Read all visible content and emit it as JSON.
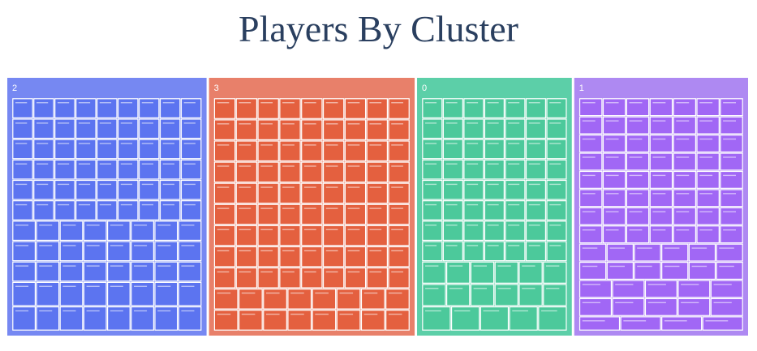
{
  "chart_data": {
    "type": "treemap",
    "title": "Players By Cluster",
    "root_color": "#ffffff",
    "series": [
      {
        "name": "2",
        "color": "#7688f2",
        "leaf_color": "#5c74f0",
        "rows": [
          {
            "count": 9,
            "weight": 1.0
          },
          {
            "count": 9,
            "weight": 1.0
          },
          {
            "count": 9,
            "weight": 1.0
          },
          {
            "count": 9,
            "weight": 1.0
          },
          {
            "count": 9,
            "weight": 1.0
          },
          {
            "count": 9,
            "weight": 1.0
          },
          {
            "count": 8,
            "weight": 1.0
          },
          {
            "count": 8,
            "weight": 1.0
          },
          {
            "count": 8,
            "weight": 1.0
          },
          {
            "count": 8,
            "weight": 1.2
          },
          {
            "count": 8,
            "weight": 1.2
          }
        ],
        "labeled_leaves": [
          "Duke Lord",
          "Moving Cheez",
          "Strong Defend",
          "Gat Harper",
          "Jen Stan",
          "Jasper Mogan",
          "Jacob Kent",
          "Doug Stewart",
          "Stephen Gray",
          "Edgar Lavell",
          "Cherry Sanderson"
        ]
      },
      {
        "name": "3",
        "color": "#e8806a",
        "leaf_color": "#e4603f",
        "rows": [
          {
            "count": 9,
            "weight": 1.0
          },
          {
            "count": 9,
            "weight": 1.0
          },
          {
            "count": 9,
            "weight": 1.0
          },
          {
            "count": 9,
            "weight": 1.0
          },
          {
            "count": 9,
            "weight": 1.0
          },
          {
            "count": 9,
            "weight": 1.0
          },
          {
            "count": 9,
            "weight": 1.0
          },
          {
            "count": 9,
            "weight": 1.0
          },
          {
            "count": 9,
            "weight": 1.0
          },
          {
            "count": 8,
            "weight": 1.0
          },
          {
            "count": 8,
            "weight": 1.0
          }
        ],
        "labeled_leaves": [
          "Gary Rose",
          "Jesus Mora",
          "Ryan Hart"
        ]
      },
      {
        "name": "0",
        "color": "#5ccfa8",
        "leaf_color": "#4cc99b",
        "rows": [
          {
            "count": 7,
            "weight": 1.0
          },
          {
            "count": 7,
            "weight": 1.0
          },
          {
            "count": 7,
            "weight": 1.0
          },
          {
            "count": 7,
            "weight": 1.0
          },
          {
            "count": 7,
            "weight": 1.0
          },
          {
            "count": 7,
            "weight": 1.0
          },
          {
            "count": 7,
            "weight": 1.0
          },
          {
            "count": 7,
            "weight": 1.0
          },
          {
            "count": 6,
            "weight": 1.1
          },
          {
            "count": 6,
            "weight": 1.1
          },
          {
            "count": 5,
            "weight": 1.2
          }
        ],
        "labeled_leaves": [
          "Jack Green",
          "Kyle Owen",
          "Josh Wells"
        ]
      },
      {
        "name": "1",
        "color": "#ae89f2",
        "leaf_color": "#a167f5",
        "rows": [
          {
            "count": 7,
            "weight": 1.0
          },
          {
            "count": 7,
            "weight": 1.0
          },
          {
            "count": 7,
            "weight": 1.0
          },
          {
            "count": 7,
            "weight": 1.0
          },
          {
            "count": 7,
            "weight": 1.0
          },
          {
            "count": 7,
            "weight": 1.0
          },
          {
            "count": 7,
            "weight": 1.0
          },
          {
            "count": 7,
            "weight": 1.0
          },
          {
            "count": 6,
            "weight": 1.0
          },
          {
            "count": 6,
            "weight": 1.0
          },
          {
            "count": 5,
            "weight": 1.0
          },
          {
            "count": 5,
            "weight": 1.0
          },
          {
            "count": 4,
            "weight": 0.8
          }
        ],
        "labeled_leaves": [
          "Ray Stone",
          "Tony Bell"
        ]
      }
    ]
  }
}
